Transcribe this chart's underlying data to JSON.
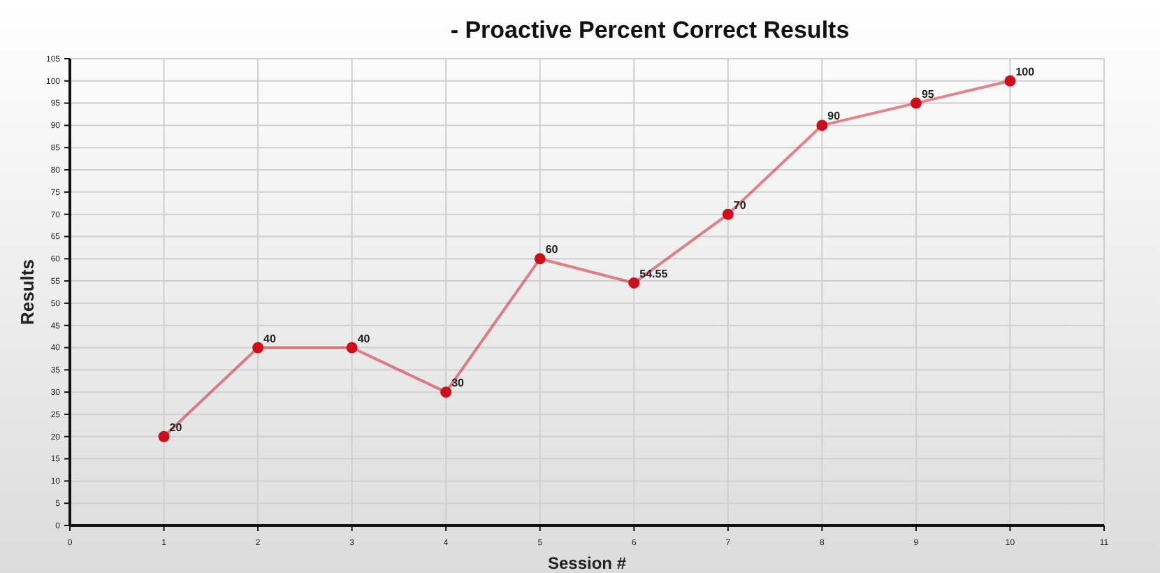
{
  "chart_data": {
    "type": "line",
    "title": "- Proactive Percent Correct Results",
    "xlabel": "Session #",
    "ylabel": "Results",
    "x": [
      1,
      2,
      3,
      4,
      5,
      6,
      7,
      8,
      9,
      10
    ],
    "series": [
      {
        "color": "#cc0f1a",
        "values": [
          20,
          40,
          40,
          30,
          60,
          54.55,
          70,
          90,
          95,
          100
        ]
      }
    ],
    "xlim": [
      0,
      11
    ],
    "xticks": [
      0,
      1,
      2,
      3,
      4,
      5,
      6,
      7,
      8,
      9,
      10,
      11
    ],
    "ylim": [
      0,
      105
    ],
    "yticks": [
      0,
      5,
      10,
      15,
      20,
      25,
      30,
      35,
      40,
      45,
      50,
      55,
      60,
      65,
      70,
      75,
      80,
      85,
      90,
      95,
      100,
      105
    ],
    "grid": true,
    "marker": "circle",
    "data_labels": true,
    "line_style": "solid"
  }
}
